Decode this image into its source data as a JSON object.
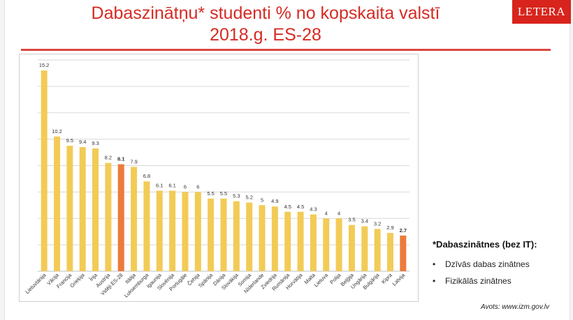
{
  "slide": {
    "title_line1": "Dabaszinātņu* studenti % no kopskaita valstī",
    "title_line2": "2018.g. ES-28",
    "logo_text": "LETERA",
    "footnote_title": "*Dabaszinātnes (bez IT):",
    "footnote_items": [
      "Dzīvās dabas zinātnes",
      "Fizikālās zinātnes"
    ],
    "source": "Avots: www.izm.gov.lv"
  },
  "colors": {
    "accent": "#d62b24",
    "bar": "#f2cb57",
    "highlight_bar": "#ec7b3b",
    "grid": "#d9d9d9"
  },
  "chart_data": {
    "type": "bar",
    "title": "",
    "xlabel": "",
    "ylabel": "",
    "ylim": [
      0,
      16
    ],
    "grid": true,
    "categories": [
      "Lietuvtānija",
      "Vācija",
      "Francija",
      "Grieķija",
      "Īrija",
      "Austrija",
      "Vidēji ES-28",
      "Itālija",
      "Luksemburga",
      "Igaunija",
      "Slovēnija",
      "Portugāle",
      "Čehija",
      "Spānija",
      "Dānija",
      "Slovākija",
      "Somija",
      "Nīderlande",
      "Zviedrija",
      "Rumānija",
      "Horvātija",
      "Malta",
      "Lietuva",
      "Polija",
      "Beļģija",
      "Ungārija",
      "Bulgārija",
      "Kipra",
      "Latvija"
    ],
    "values": [
      15.2,
      10.2,
      9.5,
      9.4,
      9.3,
      8.2,
      8.1,
      7.9,
      6.8,
      6.1,
      6.1,
      6,
      6,
      5.5,
      5.5,
      5.3,
      5.2,
      5,
      4.9,
      4.5,
      4.5,
      4.3,
      4,
      4,
      3.5,
      3.4,
      3.2,
      2.9,
      2.7
    ],
    "data_labels": [
      "15.2",
      "10.2",
      "9.5",
      "9.4",
      "9.3",
      "8.2",
      "8.1",
      "7.9",
      "6.8",
      "6.1",
      "6.1",
      "6",
      "6",
      "5.5",
      "5.5",
      "5.3",
      "5.2",
      "5",
      "4.9",
      "4.5",
      "4.5",
      "4.3",
      "4",
      "4",
      "3.5",
      "3.4",
      "3.2",
      "2.9",
      "2.7"
    ],
    "highlighted": [
      "Vidēji ES-28",
      "Latvija"
    ]
  }
}
